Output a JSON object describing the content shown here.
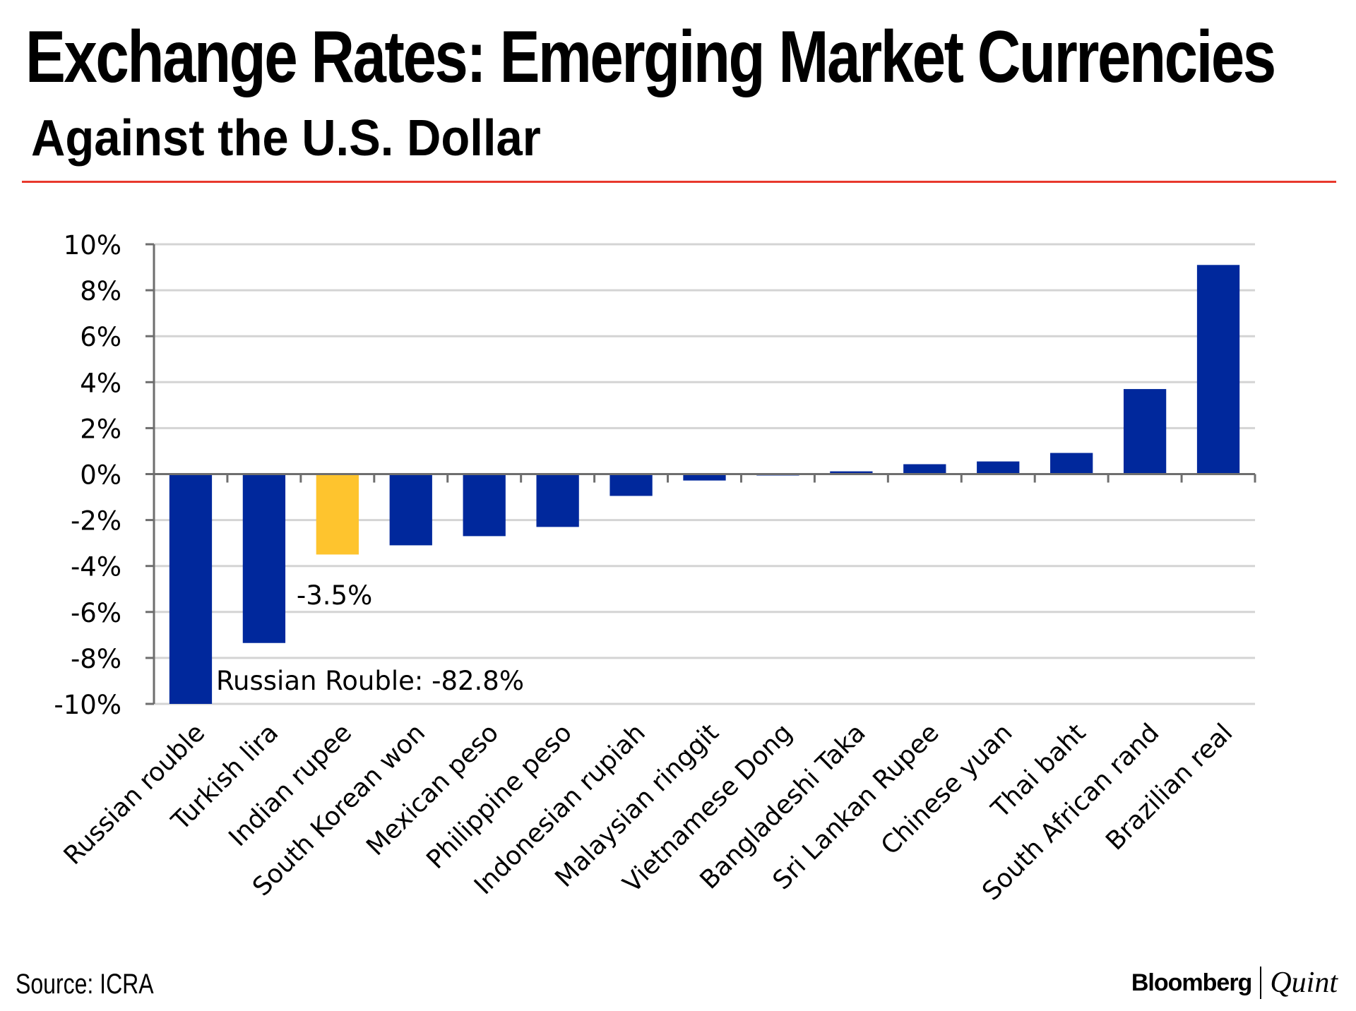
{
  "header": {
    "title": "Exchange Rates: Emerging Market Currencies",
    "subtitle": "Against the U.S. Dollar"
  },
  "footer": {
    "source": "Source: ICRA",
    "brand_left": "Bloomberg",
    "brand_right": "Quint"
  },
  "colors": {
    "bar": "#00289c",
    "highlight": "#fec42e",
    "accent_rule": "#e8382c",
    "grid": "#d4d4d4",
    "axis": "#6e6e6e"
  },
  "chart_data": {
    "type": "bar",
    "title": "Exchange Rates: Emerging Market Currencies",
    "subtitle": "Against the U.S. Dollar",
    "xlabel": "",
    "ylabel": "",
    "ylim": [
      -10,
      10
    ],
    "yticks": [
      10,
      8,
      6,
      4,
      2,
      0,
      -2,
      -4,
      -6,
      -8,
      -10
    ],
    "ytick_labels": [
      "10%",
      "8%",
      "6%",
      "4%",
      "2%",
      "0%",
      "-2%",
      "-4%",
      "-6%",
      "-8%",
      "-10%"
    ],
    "grid": true,
    "legend": "none",
    "categories": [
      "Russian rouble",
      "Turkish lira",
      "Indian rupee",
      "South Korean won",
      "Mexican peso",
      "Philippine peso",
      "Indonesian rupiah",
      "Malaysian ringgit",
      "Vietnamese Dong",
      "Bangladeshi Taka",
      "Sri Lankan Rupee",
      "Chinese yuan",
      "Thai baht",
      "South African rand",
      "Brazilian real"
    ],
    "values": [
      -82.8,
      -7.35,
      -3.5,
      -3.1,
      -2.7,
      -2.3,
      -0.95,
      -0.28,
      -0.05,
      0.12,
      0.43,
      0.55,
      0.92,
      3.7,
      9.1
    ],
    "highlight_index": 2,
    "clipped_note": "Russian rouble bar truncated at axis minimum",
    "annotations": [
      {
        "category": "Indian rupee",
        "text": "-3.5%"
      },
      {
        "category": "Russian rouble",
        "text": "Russian Rouble: -82.8%"
      }
    ]
  }
}
